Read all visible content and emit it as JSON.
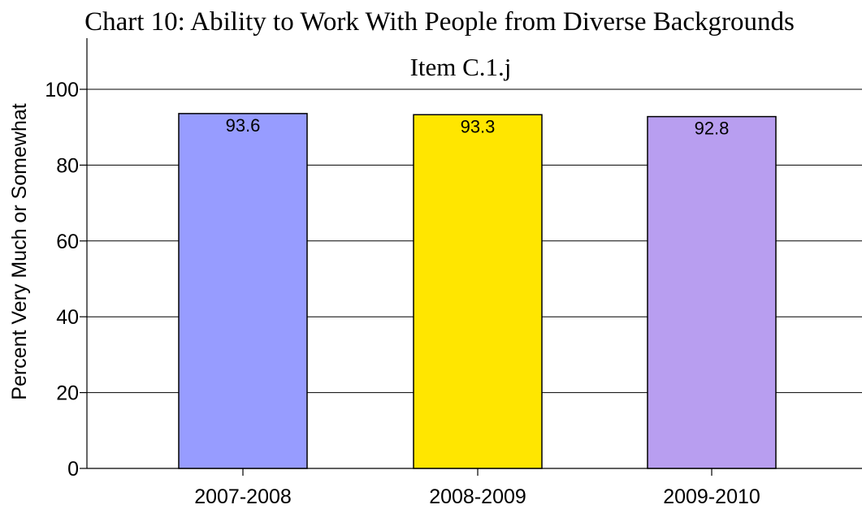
{
  "chart_data": {
    "type": "bar",
    "title": "Chart 10:  Ability to Work With People from Diverse Backgrounds",
    "subtitle": "Item C.1.j",
    "xlabel": "",
    "ylabel": "Percent Very Much or Somewhat",
    "categories": [
      "2007-2008",
      "2008-2009",
      "2009-2010"
    ],
    "values": [
      93.6,
      93.3,
      92.8
    ],
    "value_labels": [
      "93.6",
      "93.3",
      "92.8"
    ],
    "bar_colors": [
      "#979cff",
      "#ffe600",
      "#b89ef0"
    ],
    "ylim": [
      0,
      100
    ],
    "yticks": [
      0,
      20,
      40,
      60,
      80,
      100
    ],
    "ytick_labels": [
      "0",
      "20",
      "40",
      "60",
      "80",
      "100"
    ],
    "grid": true,
    "legend": "none"
  }
}
